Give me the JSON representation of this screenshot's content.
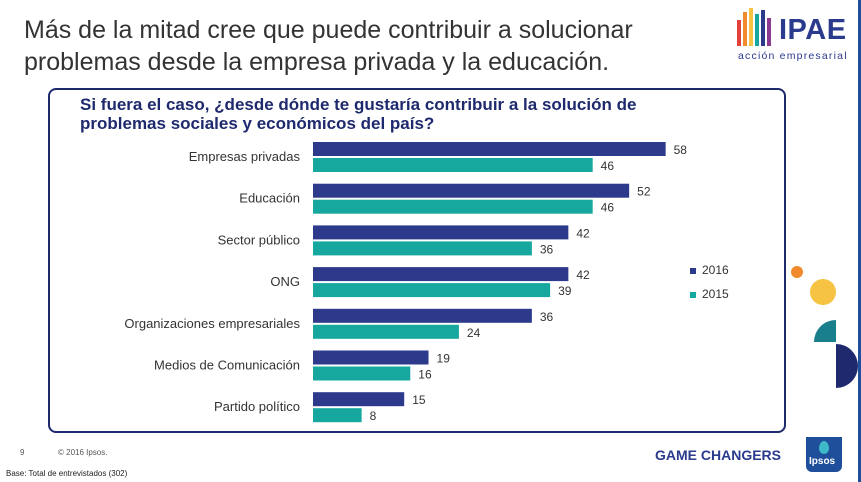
{
  "slide": {
    "title_line1": "Más de la mitad cree que puede contribuir a solucionar",
    "title_line2": "problemas desde la empresa privada y la educación.",
    "page_number": "9",
    "copyright": "© 2016 Ipsos.",
    "base_note": "Base: Total de entrevistados (302)",
    "footer_brand": "GAME CHANGERS",
    "footer_logo_text": "Ipsos"
  },
  "logo": {
    "name": "IPAE",
    "tagline": "acción empresarial"
  },
  "colors": {
    "series_2016": "#2d3a8c",
    "series_2015": "#16a89e",
    "title_blue": "#1f2a6e",
    "deco_orange": "#f08a2c",
    "deco_yellow": "#f6c343",
    "deco_teal": "#1a7f8c",
    "deco_navy": "#1f2a6e"
  },
  "chart_data": {
    "type": "bar",
    "orientation": "horizontal",
    "title_line1": "Si fuera el caso, ¿desde dónde te gustaría contribuir a la solución de",
    "title_line2": "problemas sociales y económicos del país?",
    "categories": [
      "Empresas privadas",
      "Educación",
      "Sector público",
      "ONG",
      "Organizaciones empresariales",
      "Medios de Comunicación",
      "Partido político"
    ],
    "series": [
      {
        "name": "2016",
        "values": [
          58,
          52,
          42,
          42,
          36,
          19,
          15
        ]
      },
      {
        "name": "2015",
        "values": [
          46,
          46,
          36,
          39,
          24,
          16,
          8
        ]
      }
    ],
    "xlim": [
      0,
      60
    ],
    "grid": false,
    "data_labels": true,
    "legend_position": "right"
  }
}
